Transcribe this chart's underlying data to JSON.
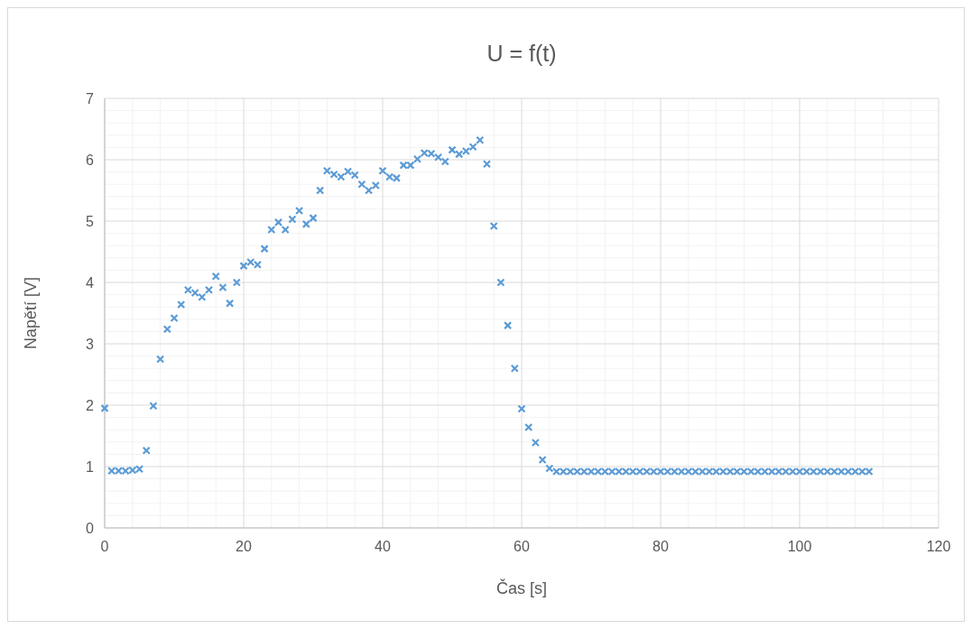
{
  "chart_data": {
    "type": "scatter",
    "title": "U = f(t)",
    "xlabel": "Čas [s]",
    "ylabel": "Napětí [V]",
    "x": [
      0,
      1,
      2,
      3,
      4,
      5,
      6,
      7,
      8,
      9,
      10,
      11,
      12,
      13,
      14,
      15,
      16,
      17,
      18,
      19,
      20,
      21,
      22,
      23,
      24,
      25,
      26,
      27,
      28,
      29,
      30,
      31,
      32,
      33,
      34,
      35,
      36,
      37,
      38,
      39,
      40,
      41,
      42,
      43,
      44,
      45,
      46,
      47,
      48,
      49,
      50,
      51,
      52,
      53,
      54,
      55,
      56,
      57,
      58,
      59,
      60,
      61,
      62,
      63,
      64,
      65,
      66,
      67,
      68,
      69,
      70,
      71,
      72,
      73,
      74,
      75,
      76,
      77,
      78,
      79,
      80,
      81,
      82,
      83,
      84,
      85,
      86,
      87,
      88,
      89,
      90,
      91,
      92,
      93,
      94,
      95,
      96,
      97,
      98,
      99,
      100,
      101,
      102,
      103,
      104,
      105,
      106,
      107,
      108,
      109,
      110
    ],
    "series": [
      {
        "color": "#5b9bd5",
        "values": [
          1.95,
          0.93,
          0.93,
          0.93,
          0.94,
          0.96,
          1.26,
          1.99,
          2.75,
          3.24,
          3.42,
          3.64,
          3.88,
          3.83,
          3.76,
          3.88,
          4.1,
          3.92,
          3.66,
          4.0,
          4.27,
          4.33,
          4.29,
          4.55,
          4.86,
          4.98,
          4.86,
          5.03,
          5.17,
          4.95,
          5.05,
          5.5,
          5.82,
          5.76,
          5.72,
          5.81,
          5.75,
          5.6,
          5.5,
          5.58,
          5.82,
          5.72,
          5.7,
          5.91,
          5.91,
          6.01,
          6.11,
          6.1,
          6.04,
          5.97,
          6.16,
          6.09,
          6.14,
          6.21,
          6.32,
          5.93,
          4.92,
          4.0,
          3.3,
          2.6,
          1.94,
          1.64,
          1.39,
          1.11,
          0.97,
          0.92,
          0.92,
          0.92,
          0.92,
          0.92,
          0.92,
          0.92,
          0.92,
          0.92,
          0.92,
          0.92,
          0.92,
          0.92,
          0.92,
          0.92,
          0.92,
          0.92,
          0.92,
          0.92,
          0.92,
          0.92,
          0.92,
          0.92,
          0.92,
          0.92,
          0.92,
          0.92,
          0.92,
          0.92,
          0.92,
          0.92,
          0.92,
          0.92,
          0.92,
          0.92,
          0.92,
          0.92,
          0.92,
          0.92,
          0.92,
          0.92,
          0.92,
          0.92,
          0.92,
          0.92,
          0.92
        ]
      }
    ],
    "xlim": [
      0,
      120
    ],
    "xticks": [
      0,
      20,
      40,
      60,
      80,
      100,
      120
    ],
    "ylim": [
      0,
      7
    ],
    "yticks": [
      0,
      1,
      2,
      3,
      4,
      5,
      6,
      7
    ],
    "grid": true,
    "marker": "cross"
  }
}
